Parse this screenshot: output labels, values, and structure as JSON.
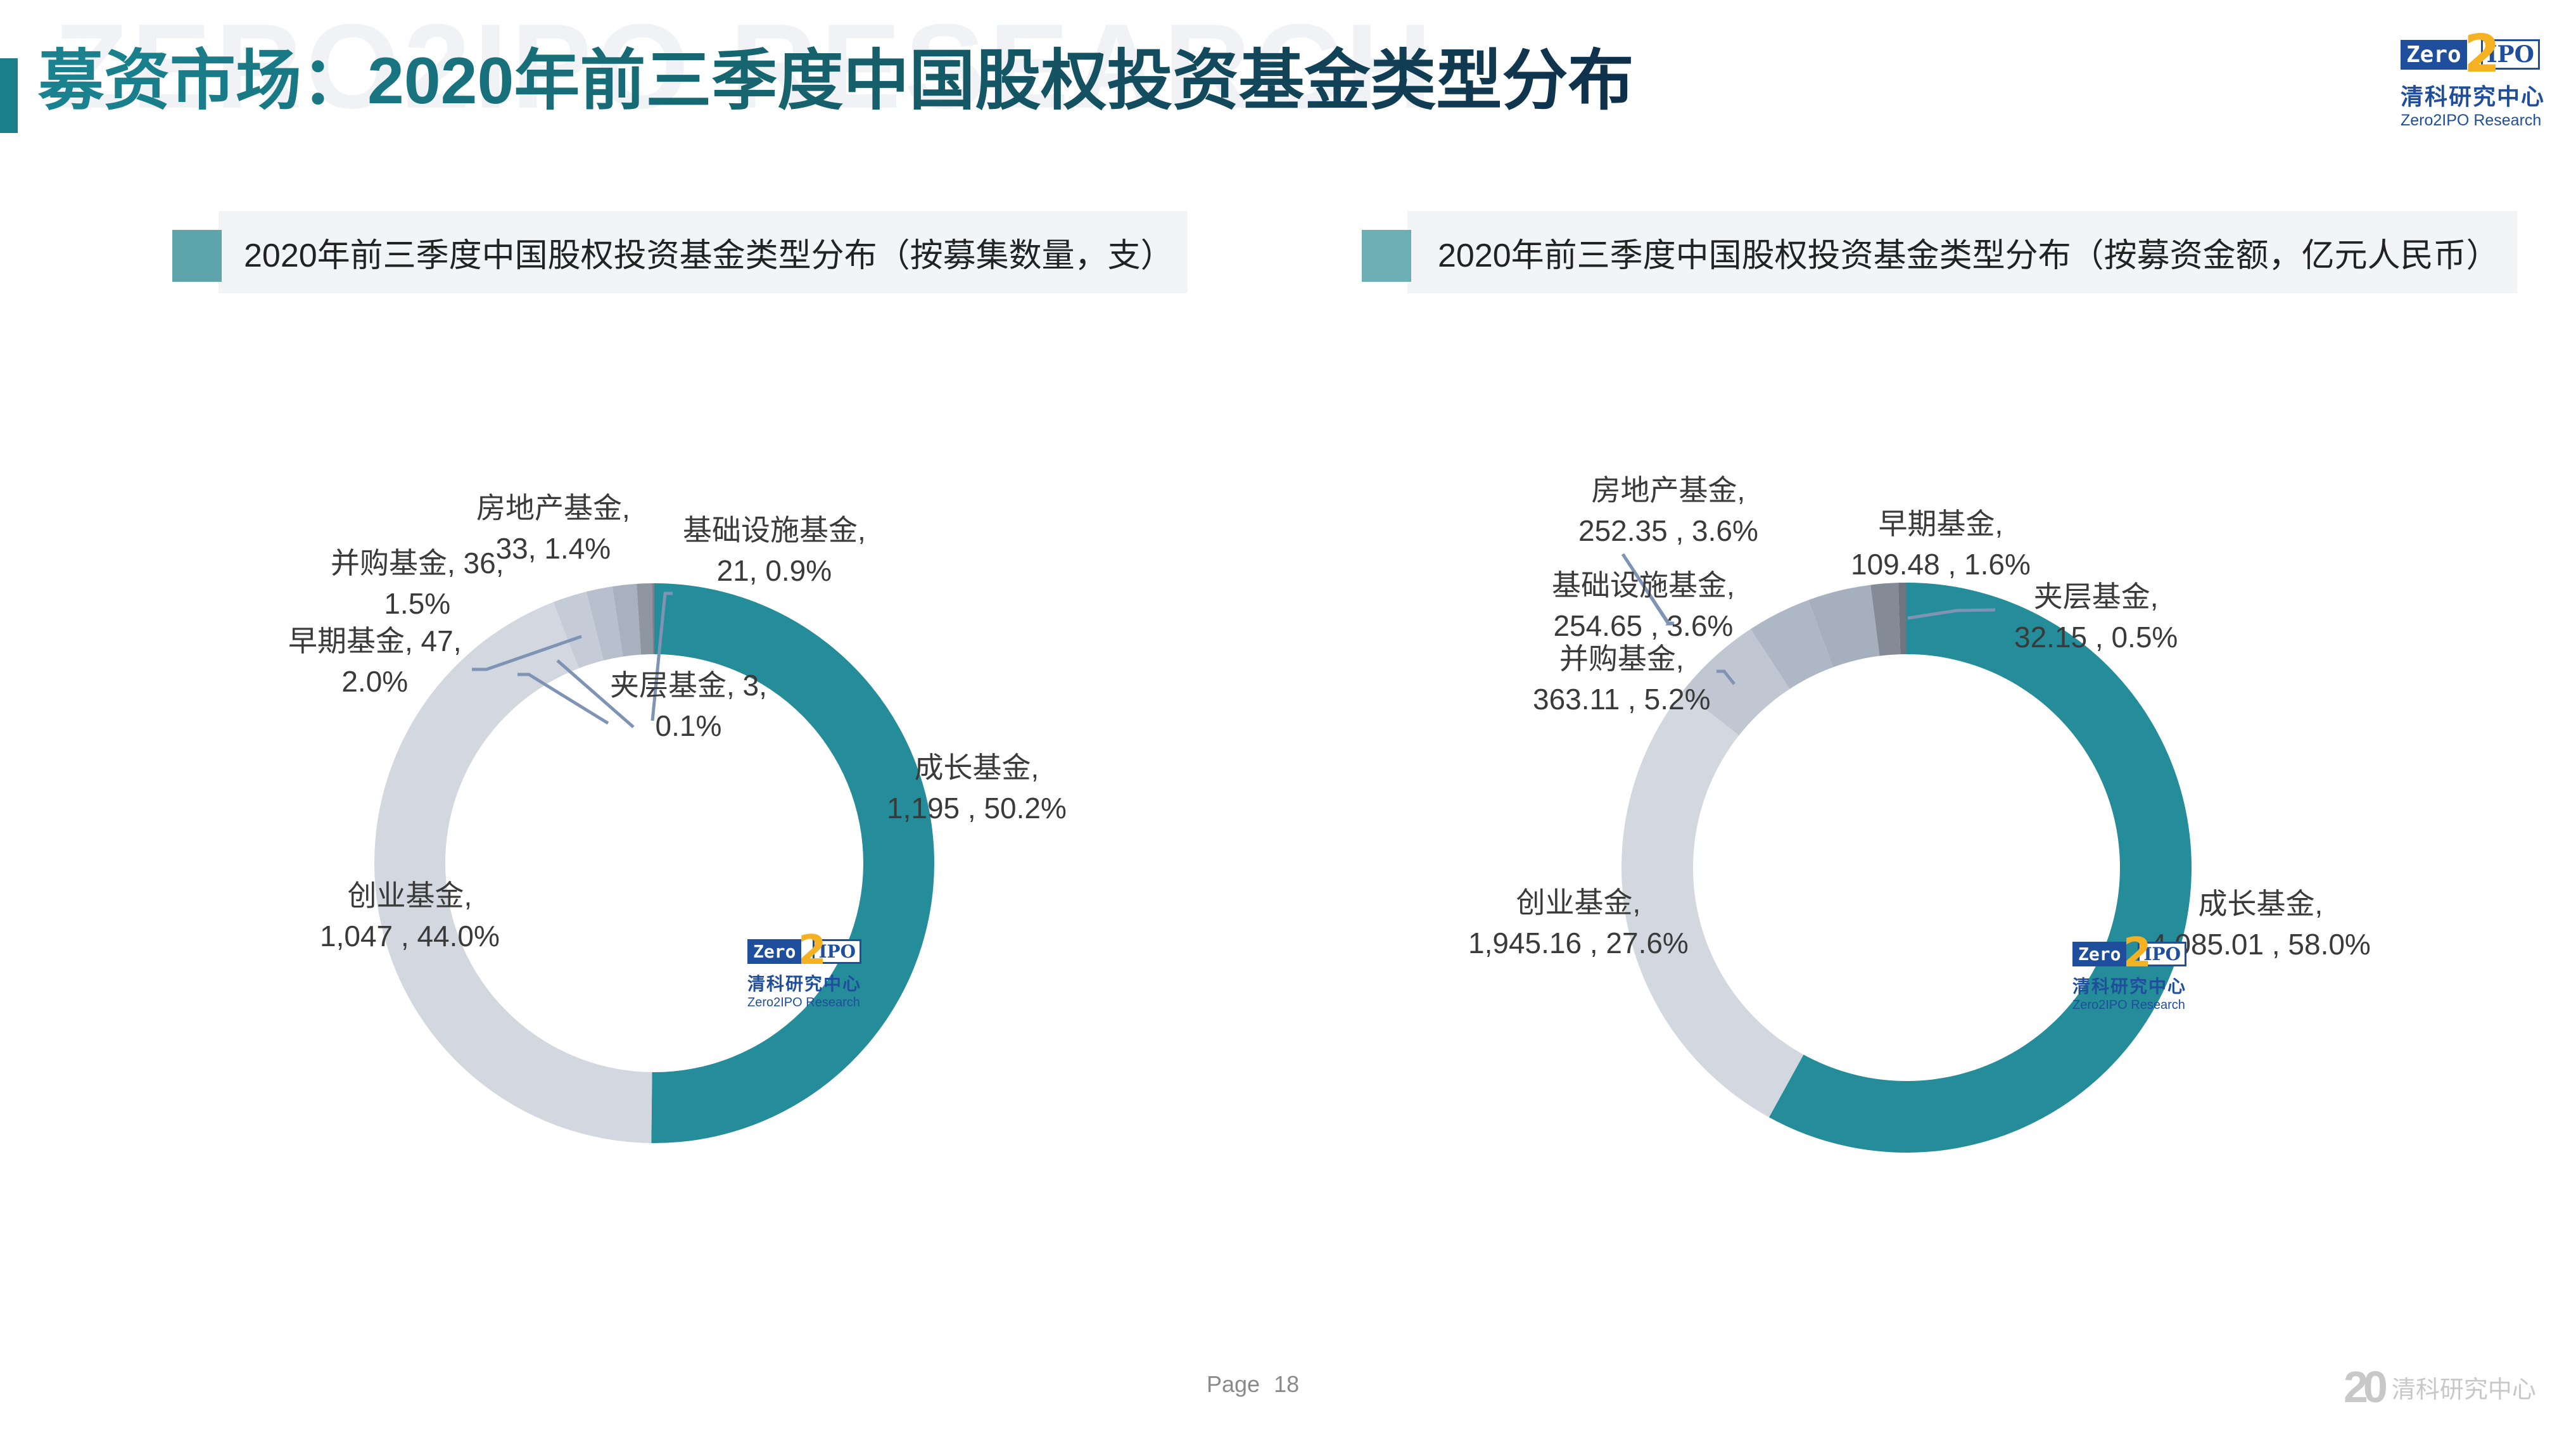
{
  "header": {
    "watermark": "ZERO2IPO RESEARCH",
    "title": "募资市场：2020年前三季度中国股权投资基金类型分布",
    "logo": {
      "zero": "Zero",
      "two": "2",
      "ipo": "IPO",
      "cn": "清科研究中心",
      "en": "Zero2IPO Research"
    }
  },
  "colors": {
    "accent": "#1a7f8a",
    "teal": "#258c99",
    "subtitle_square_left": "#5ea5ab",
    "subtitle_square_right": "#6cb0b6",
    "leader_line": "#7f93b4",
    "label_text": "#3a3a3a"
  },
  "chart_data": [
    {
      "type": "pie",
      "variant": "donut",
      "title": "2020年前三季度中国股权投资基金类型分布（按募集数量，支）",
      "unit": "支",
      "start_angle": "12 o'clock, clockwise",
      "categories": [
        "成长基金",
        "创业基金",
        "早期基金",
        "并购基金",
        "房地产基金",
        "基础设施基金",
        "夹层基金"
      ],
      "values": [
        1195,
        1047,
        47,
        36,
        33,
        21,
        3
      ],
      "value_labels": [
        "1,195",
        "1,047",
        "47",
        "36",
        "33",
        "21",
        "3"
      ],
      "percentages": [
        50.2,
        44.0,
        2.0,
        1.5,
        1.4,
        0.9,
        0.1
      ],
      "colors": [
        "#258c99",
        "#d3d8e0",
        "#c6ccd7",
        "#b8c0cd",
        "#a8b1bf",
        "#8f96a2",
        "#7c828c"
      ],
      "labels": [
        {
          "lines": [
            "成长基金,",
            "1,195 , 50.2%"
          ]
        },
        {
          "lines": [
            "创业基金,",
            "1,047 , 44.0%"
          ]
        },
        {
          "lines": [
            "早期基金, 47,",
            "2.0%"
          ]
        },
        {
          "lines": [
            "并购基金, 36,",
            "1.5%"
          ]
        },
        {
          "lines": [
            "房地产基金,",
            "33, 1.4%"
          ]
        },
        {
          "lines": [
            "基础设施基金,",
            "21, 0.9%"
          ]
        },
        {
          "lines": [
            "夹层基金, 3,",
            "0.1%"
          ]
        }
      ],
      "legend": "none (inline data labels)"
    },
    {
      "type": "pie",
      "variant": "donut",
      "title": "2020年前三季度中国股权投资基金类型分布（按募资金额，亿元人民币）",
      "unit": "亿元人民币",
      "start_angle": "12 o'clock, clockwise",
      "categories": [
        "成长基金",
        "创业基金",
        "并购基金",
        "基础设施基金",
        "房地产基金",
        "早期基金",
        "夹层基金"
      ],
      "values": [
        4085.01,
        1945.16,
        363.11,
        254.65,
        252.35,
        109.48,
        32.15
      ],
      "value_labels": [
        "4,085.01",
        "1,945.16",
        "363.11",
        "254.65",
        "252.35",
        "109.48",
        "32.15"
      ],
      "percentages": [
        58.0,
        27.6,
        5.2,
        3.6,
        3.6,
        1.6,
        0.5
      ],
      "colors": [
        "#258c99",
        "#d3d8e0",
        "#c0c7d3",
        "#aeb7c5",
        "#a6afbe",
        "#858b96",
        "#6f757f"
      ],
      "labels": [
        {
          "lines": [
            "成长基金,",
            "4,085.01 , 58.0%"
          ]
        },
        {
          "lines": [
            "创业基金,",
            "1,945.16 , 27.6%"
          ]
        },
        {
          "lines": [
            "并购基金,",
            "363.11 , 5.2%"
          ]
        },
        {
          "lines": [
            "基础设施基金,",
            "254.65 , 3.6%"
          ]
        },
        {
          "lines": [
            "房地产基金,",
            "252.35 , 3.6%"
          ]
        },
        {
          "lines": [
            "早期基金,",
            "109.48 , 1.6%"
          ]
        },
        {
          "lines": [
            "夹层基金,",
            "32.15 , 0.5%"
          ]
        }
      ],
      "legend": "none (inline data labels)"
    }
  ],
  "panels": {
    "left_subtitle": "2020年前三季度中国股权投资基金类型分布（按募集数量，支）",
    "right_subtitle": "2020年前三季度中国股权投资基金类型分布（按募资金额，亿元人民币）"
  },
  "chart_logo": {
    "zero": "Zero",
    "two": "2",
    "ipo": "IPO",
    "cn": "清科研究中心",
    "en": "Zero2IPO Research"
  },
  "footer": {
    "page_label": "Page",
    "page_number": "18",
    "anniversary_mark": "20",
    "brand_cn": "清科研究中心"
  }
}
